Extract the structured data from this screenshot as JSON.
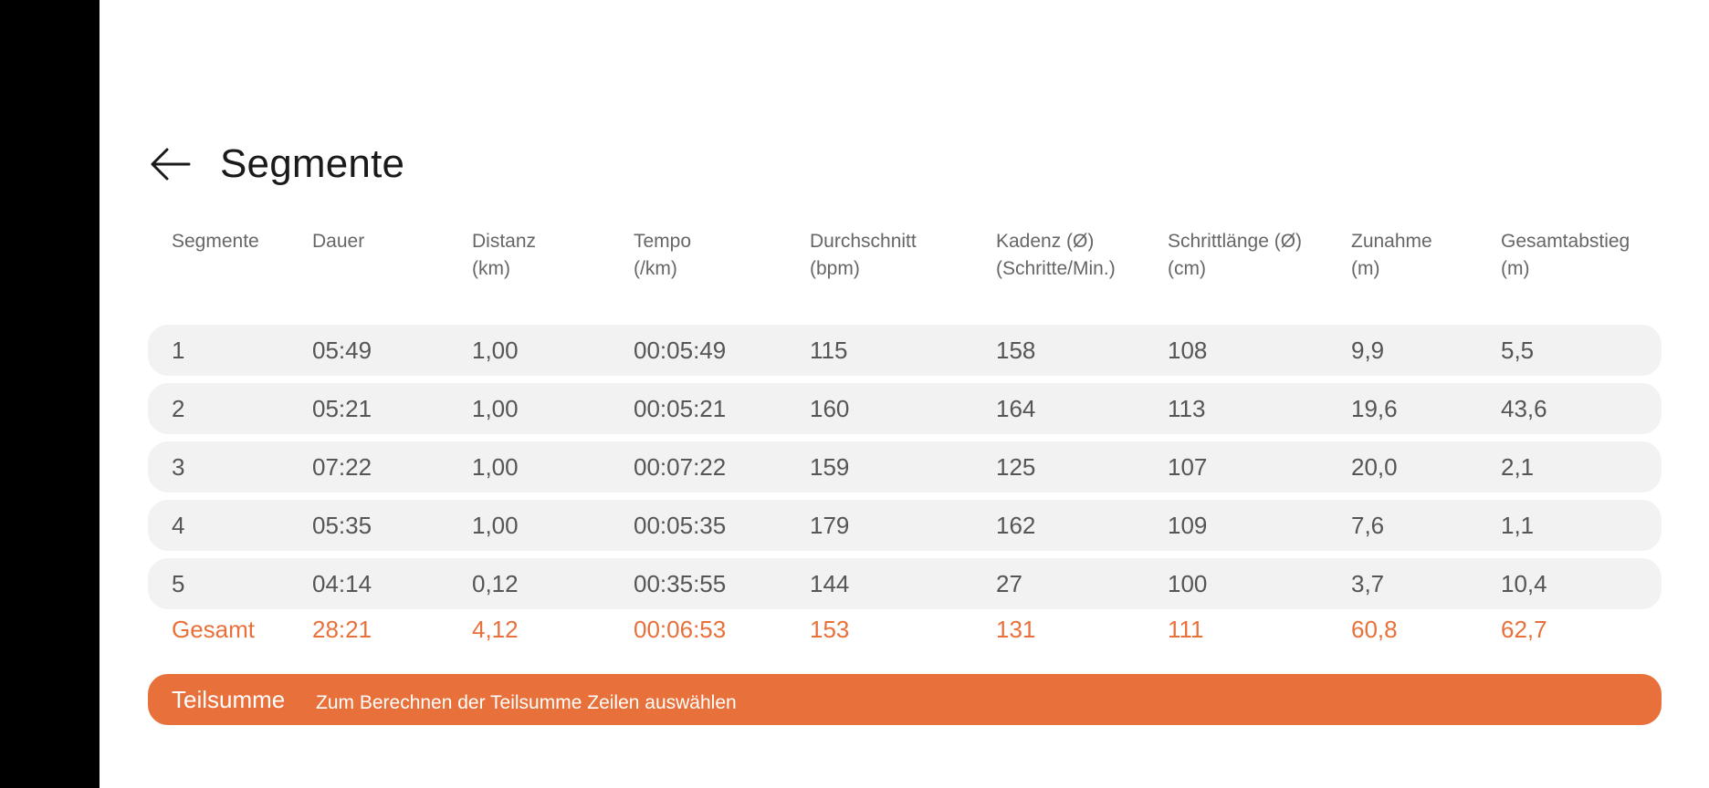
{
  "header": {
    "title": "Segmente",
    "back_icon": "arrow-left-icon"
  },
  "table": {
    "columns": [
      {
        "line1": "Segmente",
        "line2": ""
      },
      {
        "line1": "Dauer",
        "line2": ""
      },
      {
        "line1": "Distanz",
        "line2": "(km)"
      },
      {
        "line1": "Tempo",
        "line2": "(/km)"
      },
      {
        "line1": "Durchschnitt",
        "line2": "(bpm)"
      },
      {
        "line1": "Kadenz (Ø)",
        "line2": "(Schritte/Min.)"
      },
      {
        "line1": "Schrittlänge (Ø)",
        "line2": "(cm)"
      },
      {
        "line1": "Zunahme",
        "line2": "(m)"
      },
      {
        "line1": "Gesamtabstieg",
        "line2": "(m)"
      }
    ],
    "rows": [
      [
        "1",
        "05:49",
        "1,00",
        "00:05:49",
        "115",
        "158",
        "108",
        "9,9",
        "5,5"
      ],
      [
        "2",
        "05:21",
        "1,00",
        "00:05:21",
        "160",
        "164",
        "113",
        "19,6",
        "43,6"
      ],
      [
        "3",
        "07:22",
        "1,00",
        "00:07:22",
        "159",
        "125",
        "107",
        "20,0",
        "2,1"
      ],
      [
        "4",
        "05:35",
        "1,00",
        "00:05:35",
        "179",
        "162",
        "109",
        "7,6",
        "1,1"
      ],
      [
        "5",
        "04:14",
        "0,12",
        "00:35:55",
        "144",
        "27",
        "100",
        "3,7",
        "10,4"
      ]
    ],
    "total": [
      "Gesamt",
      "28:21",
      "4,12",
      "00:06:53",
      "153",
      "131",
      "111",
      "60,8",
      "62,7"
    ]
  },
  "subtotal": {
    "label": "Teilsumme",
    "hint": "Zum Berechnen der Teilsumme Zeilen auswählen"
  },
  "colors": {
    "accent": "#e8703a",
    "row_bg": "#f2f2f2",
    "header_text": "#666666",
    "body_text": "#555555"
  }
}
